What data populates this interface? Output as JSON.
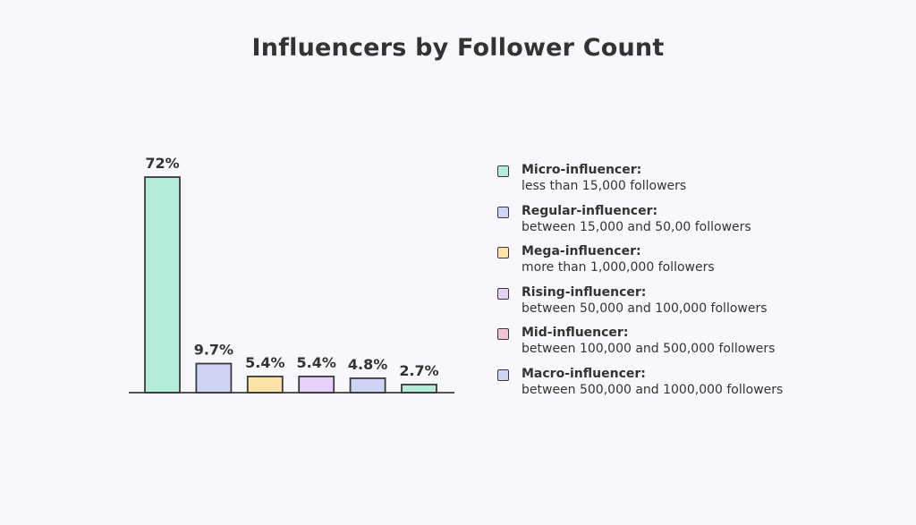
{
  "chart_data": {
    "type": "bar",
    "title": "Influencers by Follower Count",
    "categories": [
      "Micro-influencer",
      "Regular-influencer",
      "Mega-influencer",
      "Rising-influencer",
      "Mid-influencer",
      "Macro-influencer"
    ],
    "values": [
      72,
      9.7,
      5.4,
      5.4,
      4.8,
      2.7
    ],
    "data_labels": [
      "72%",
      "9.7%",
      "5.4%",
      "5.4%",
      "4.8%",
      "2.7%"
    ],
    "bar_colors": [
      "#b3ecdb",
      "#cfd4f6",
      "#fde3a6",
      "#e7d0f8",
      "#cfd4f6",
      "#b3ecdb"
    ],
    "xlabel": "",
    "ylabel": "",
    "ylim": [
      0,
      72
    ],
    "grid": false,
    "legend_position": "right",
    "legend": [
      {
        "title": "Micro-influencer:",
        "desc": "less than 15,000 followers",
        "color": "#b3ecdb"
      },
      {
        "title": "Regular-influencer:",
        "desc": "between 15,000 and 50,00 followers",
        "color": "#cfd4f6"
      },
      {
        "title": "Mega-influencer:",
        "desc": "more than 1,000,000 followers",
        "color": "#fde3a6"
      },
      {
        "title": "Rising-influencer:",
        "desc": "between 50,000 and 100,000 followers",
        "color": "#e7d0f8"
      },
      {
        "title": "Mid-influencer:",
        "desc": "between 100,000 and 500,000 followers",
        "color": "#f0c4d6"
      },
      {
        "title": "Macro-influencer:",
        "desc": "between 500,000 and 1000,000 followers",
        "color": "#cfd4f6"
      }
    ]
  }
}
